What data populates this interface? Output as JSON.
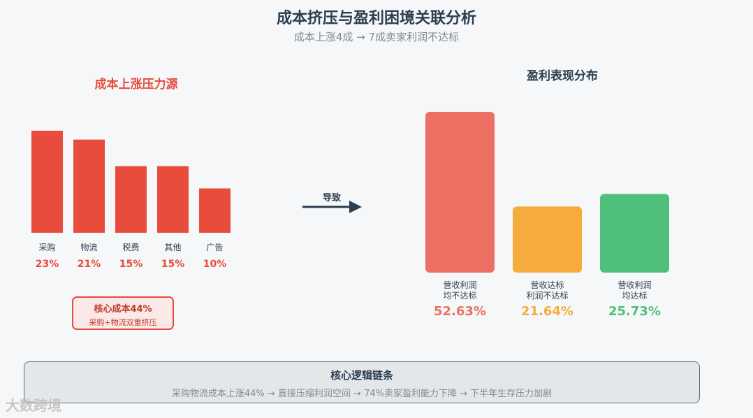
{
  "title": "成本挤压与盈利困境关联分析",
  "subtitle": "成本上涨4成 → 7成卖家利润不达标",
  "arrow_label": "导致",
  "core_box": {
    "title": "核心成本44%",
    "subtitle": "采购+物流双重挤压"
  },
  "chain_box": {
    "title": "核心逻辑链条",
    "text": "采购物流成本上涨44% → 直接压缩利润空间 → 74%卖家盈利能力下降 → 下半年生存压力加剧"
  },
  "watermark": "大数跨境",
  "colors": {
    "red": "#e74c3c",
    "orange": "#f5ac3c",
    "green": "#50bf7c",
    "dark": "#2c3e50"
  },
  "chart_data": [
    {
      "type": "bar",
      "title": "成本上涨压力源",
      "categories": [
        "采购",
        "物流",
        "税费",
        "其他",
        "广告"
      ],
      "values": [
        23,
        21,
        15,
        15,
        10
      ],
      "value_labels": [
        "23%",
        "21%",
        "15%",
        "15%",
        "10%"
      ],
      "unit": "%",
      "ylim": [
        0,
        23
      ],
      "color": "#e74c3c"
    },
    {
      "type": "bar",
      "title": "盈利表现分布",
      "categories": [
        [
          "营收利润",
          "均不达标"
        ],
        [
          "营收达标",
          "利润不达标"
        ],
        [
          "营收利润",
          "均达标"
        ]
      ],
      "values": [
        52.63,
        21.64,
        25.73
      ],
      "value_labels": [
        "52.63%",
        "21.64%",
        "25.73%"
      ],
      "unit": "%",
      "ylim": [
        0,
        52.63
      ],
      "colors": [
        "#ec6f63",
        "#f5ac3c",
        "#50bf7c"
      ]
    }
  ]
}
